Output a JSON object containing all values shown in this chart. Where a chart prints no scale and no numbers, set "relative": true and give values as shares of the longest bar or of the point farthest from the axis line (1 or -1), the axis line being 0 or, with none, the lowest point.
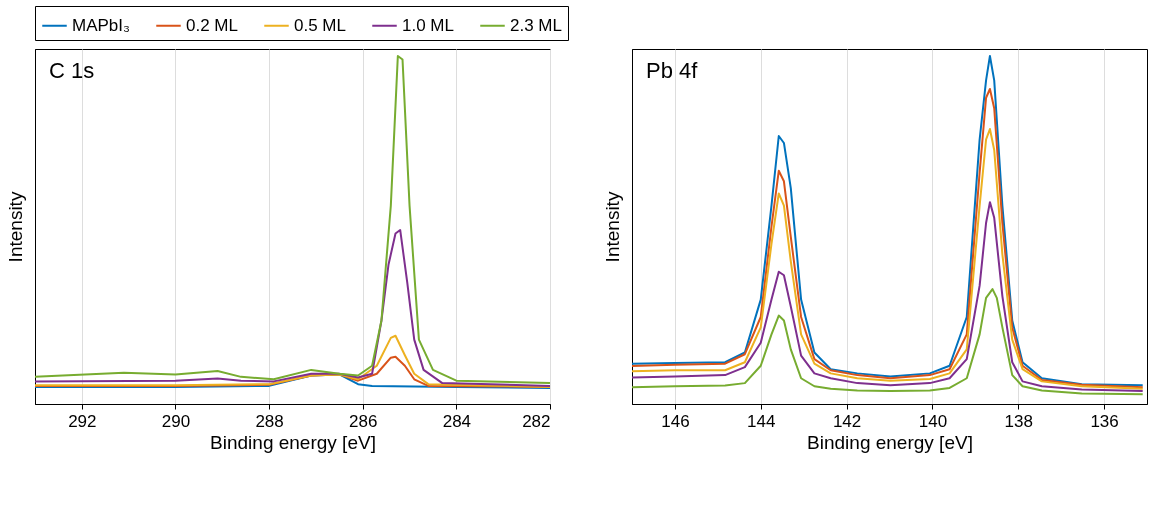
{
  "chart_data": [
    {
      "type": "line",
      "relative": true,
      "annotations": [
        "C 1s"
      ],
      "xlabel": "Binding energy [eV]",
      "ylabel": "Intensity",
      "xlim": [
        293,
        282
      ],
      "xticks": [
        292,
        290,
        288,
        286,
        284,
        282
      ],
      "grid": "x",
      "legend": "top",
      "tick_labels": "x",
      "series": [
        {
          "name": "MAPbI₃",
          "color": "#0072bd",
          "x": [
            293,
            290,
            288,
            287.1,
            286.5,
            286.1,
            285.8,
            284,
            282
          ],
          "values": [
            0.049,
            0.049,
            0.052,
            0.082,
            0.085,
            0.057,
            0.052,
            0.049,
            0.046
          ]
        },
        {
          "name": "0.2 ML",
          "color": "#d95319",
          "x": [
            293,
            290,
            288,
            287.1,
            286.5,
            286.1,
            285.7,
            285.4,
            285.3,
            285.1,
            284.9,
            284.6,
            282
          ],
          "values": [
            0.052,
            0.052,
            0.055,
            0.082,
            0.085,
            0.067,
            0.087,
            0.133,
            0.136,
            0.11,
            0.071,
            0.052,
            0.049
          ]
        },
        {
          "name": "0.5 ML",
          "color": "#edb120",
          "x": [
            293,
            290,
            288,
            287.1,
            286.5,
            286.1,
            285.7,
            285.4,
            285.3,
            285.1,
            284.9,
            284.6,
            282
          ],
          "values": [
            0.054,
            0.054,
            0.057,
            0.082,
            0.085,
            0.071,
            0.11,
            0.19,
            0.196,
            0.14,
            0.087,
            0.057,
            0.049
          ]
        },
        {
          "name": "1.0 ML",
          "color": "#7e2f8e",
          "x": [
            293,
            290,
            289.1,
            288.6,
            287.9,
            287.1,
            286.5,
            286.1,
            285.8,
            285.6,
            285.45,
            285.3,
            285.2,
            285.05,
            284.9,
            284.7,
            284.3,
            282
          ],
          "values": [
            0.065,
            0.067,
            0.073,
            0.067,
            0.065,
            0.087,
            0.087,
            0.076,
            0.087,
            0.24,
            0.4,
            0.49,
            0.5,
            0.35,
            0.185,
            0.098,
            0.06,
            0.052
          ]
        },
        {
          "name": "2.3 ML",
          "color": "#77ac30",
          "x": [
            293,
            291.1,
            290,
            289.1,
            288.6,
            287.9,
            287.1,
            286.5,
            286.1,
            285.8,
            285.6,
            285.4,
            285.25,
            285.15,
            285.0,
            284.8,
            284.5,
            284.0,
            282
          ],
          "values": [
            0.078,
            0.09,
            0.085,
            0.095,
            0.078,
            0.071,
            0.098,
            0.087,
            0.082,
            0.11,
            0.24,
            0.57,
            1.0,
            0.99,
            0.57,
            0.185,
            0.098,
            0.067,
            0.06
          ]
        }
      ]
    },
    {
      "type": "line",
      "relative": true,
      "annotations": [
        "Pb 4f"
      ],
      "xlabel": "Binding energy [eV]",
      "ylabel": "Intensity",
      "xlim": [
        147,
        135
      ],
      "xticks": [
        146,
        144,
        142,
        140,
        138,
        136
      ],
      "grid": "x",
      "legend": "top",
      "tick_labels": "x",
      "series": [
        {
          "name": "MAPbI₃",
          "color": "#0072bd",
          "x": [
            147,
            146,
            144.83,
            144.37,
            144,
            143.75,
            143.58,
            143.46,
            143.3,
            143.06,
            142.75,
            142.37,
            141.75,
            140.98,
            140.06,
            139.6,
            139.2,
            138.9,
            138.75,
            138.66,
            138.56,
            138.37,
            138.14,
            137.9,
            137.45,
            136.52,
            135.1
          ],
          "values": [
            0.116,
            0.118,
            0.12,
            0.148,
            0.3,
            0.57,
            0.77,
            0.75,
            0.62,
            0.3,
            0.148,
            0.1,
            0.088,
            0.079,
            0.088,
            0.11,
            0.25,
            0.76,
            0.93,
            1.0,
            0.93,
            0.57,
            0.24,
            0.12,
            0.074,
            0.057,
            0.054
          ]
        },
        {
          "name": "0.2 ML",
          "color": "#d95319",
          "x": [
            147,
            146,
            144.83,
            144.37,
            144,
            143.75,
            143.58,
            143.46,
            143.3,
            143.06,
            142.75,
            142.37,
            141.75,
            140.98,
            140.06,
            139.6,
            139.2,
            138.9,
            138.75,
            138.66,
            138.56,
            138.37,
            138.14,
            137.9,
            137.45,
            136.52,
            135.1
          ],
          "values": [
            0.109,
            0.113,
            0.116,
            0.143,
            0.25,
            0.51,
            0.67,
            0.64,
            0.48,
            0.25,
            0.129,
            0.097,
            0.083,
            0.074,
            0.083,
            0.1,
            0.2,
            0.665,
            0.88,
            0.905,
            0.85,
            0.52,
            0.22,
            0.11,
            0.069,
            0.055,
            0.048
          ]
        },
        {
          "name": "0.5 ML",
          "color": "#edb120",
          "x": [
            147,
            146,
            144.83,
            144.37,
            144,
            143.75,
            143.58,
            143.46,
            143.3,
            143.06,
            142.75,
            142.37,
            141.75,
            140.98,
            140.06,
            139.6,
            139.2,
            138.9,
            138.75,
            138.66,
            138.56,
            138.37,
            138.14,
            137.9,
            137.45,
            136.52,
            135.1
          ],
          "values": [
            0.094,
            0.097,
            0.097,
            0.12,
            0.22,
            0.46,
            0.605,
            0.57,
            0.41,
            0.2,
            0.116,
            0.088,
            0.074,
            0.067,
            0.072,
            0.088,
            0.157,
            0.57,
            0.76,
            0.79,
            0.73,
            0.43,
            0.185,
            0.1,
            0.065,
            0.051,
            0.044
          ]
        },
        {
          "name": "1.0 ML",
          "color": "#7e2f8e",
          "x": [
            147,
            146,
            144.83,
            144.37,
            144,
            143.75,
            143.58,
            143.46,
            143.3,
            143.06,
            142.75,
            142.37,
            141.75,
            140.98,
            140.06,
            139.6,
            139.2,
            138.9,
            138.75,
            138.66,
            138.56,
            138.37,
            138.14,
            137.9,
            137.45,
            136.52,
            135.1
          ],
          "values": [
            0.076,
            0.079,
            0.083,
            0.106,
            0.176,
            0.3,
            0.38,
            0.37,
            0.28,
            0.139,
            0.088,
            0.074,
            0.06,
            0.054,
            0.06,
            0.074,
            0.129,
            0.34,
            0.52,
            0.58,
            0.535,
            0.31,
            0.12,
            0.065,
            0.051,
            0.042,
            0.037
          ]
        },
        {
          "name": "2.3 ML",
          "color": "#77ac30",
          "x": [
            147,
            146,
            144.83,
            144.37,
            144,
            143.75,
            143.58,
            143.46,
            143.3,
            143.06,
            142.75,
            142.37,
            141.75,
            140.98,
            140.06,
            139.6,
            139.2,
            138.9,
            138.75,
            138.6,
            138.5,
            138.37,
            138.14,
            137.9,
            137.45,
            136.52,
            135.1
          ],
          "values": [
            0.048,
            0.051,
            0.053,
            0.06,
            0.11,
            0.2,
            0.254,
            0.24,
            0.157,
            0.074,
            0.051,
            0.044,
            0.039,
            0.037,
            0.039,
            0.046,
            0.074,
            0.2,
            0.305,
            0.33,
            0.305,
            0.22,
            0.083,
            0.051,
            0.039,
            0.03,
            0.028
          ]
        }
      ]
    }
  ]
}
